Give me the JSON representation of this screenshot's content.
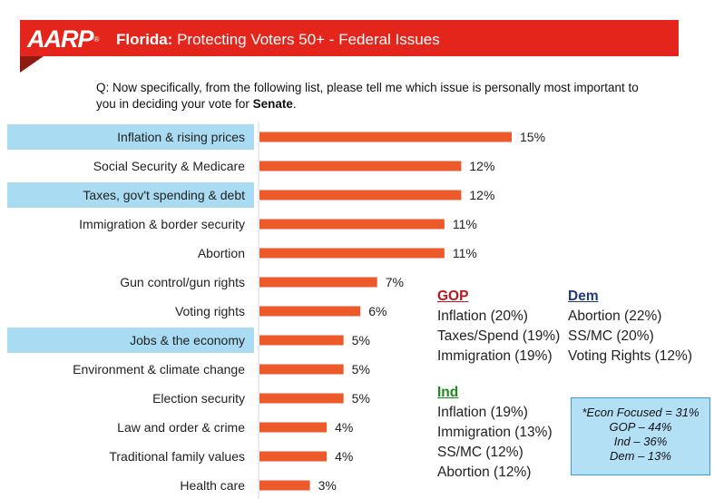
{
  "header": {
    "logo": "AARP",
    "logo_mark": "®",
    "title_bold": "Florida:",
    "title_rest": " Protecting Voters 50+ - Federal Issues",
    "colors": {
      "banner": "#e4251c",
      "fold": "#8e1a12"
    }
  },
  "question": {
    "text": "Q: Now specifically, from the following list, please tell me which issue is personally most important to you in deciding your vote for ",
    "emphasis": "Senate",
    "end": "."
  },
  "chart_data": {
    "type": "bar",
    "orientation": "horizontal",
    "categories": [
      "Inflation & rising prices",
      "Social Security & Medicare",
      "Taxes, gov't spending & debt",
      "Immigration & border security",
      "Abortion",
      "Gun control/gun rights",
      "Voting rights",
      "Jobs & the economy",
      "Environment & climate change",
      "Election security",
      "Law and order & crime",
      "Traditional family values",
      "Health care"
    ],
    "values": [
      15,
      12,
      12,
      11,
      11,
      7,
      6,
      5,
      5,
      5,
      4,
      4,
      3
    ],
    "value_labels": [
      "15%",
      "12%",
      "12%",
      "11%",
      "11%",
      "7%",
      "6%",
      "5%",
      "5%",
      "5%",
      "4%",
      "4%",
      "3%"
    ],
    "highlighted": [
      "Inflation & rising prices",
      "Taxes, gov't spending & debt",
      "Jobs & the economy"
    ],
    "xlim": [
      0,
      16
    ],
    "bar_color": "#ec5a2c",
    "highlight_color": "#a9dbf3",
    "grid": false
  },
  "gop": {
    "head": "GOP",
    "items": [
      "Inflation (20%)",
      "Taxes/Spend (19%)",
      "Immigration (19%)"
    ],
    "color": "#c0151b"
  },
  "dem": {
    "head": "Dem",
    "items": [
      "Abortion (22%)",
      "SS/MC (20%)",
      "Voting Rights (12%)"
    ],
    "color": "#1f3a7a"
  },
  "ind": {
    "head": "Ind",
    "items": [
      "Inflation (19%)",
      "Immigration (13%)",
      "SS/MC (12%)",
      "Abortion (12%)"
    ],
    "color": "#1a8a1a"
  },
  "econ": {
    "lines": [
      "*Econ Focused = 31%",
      "GOP – 44%",
      "Ind – 36%",
      "Dem – 13%"
    ]
  }
}
